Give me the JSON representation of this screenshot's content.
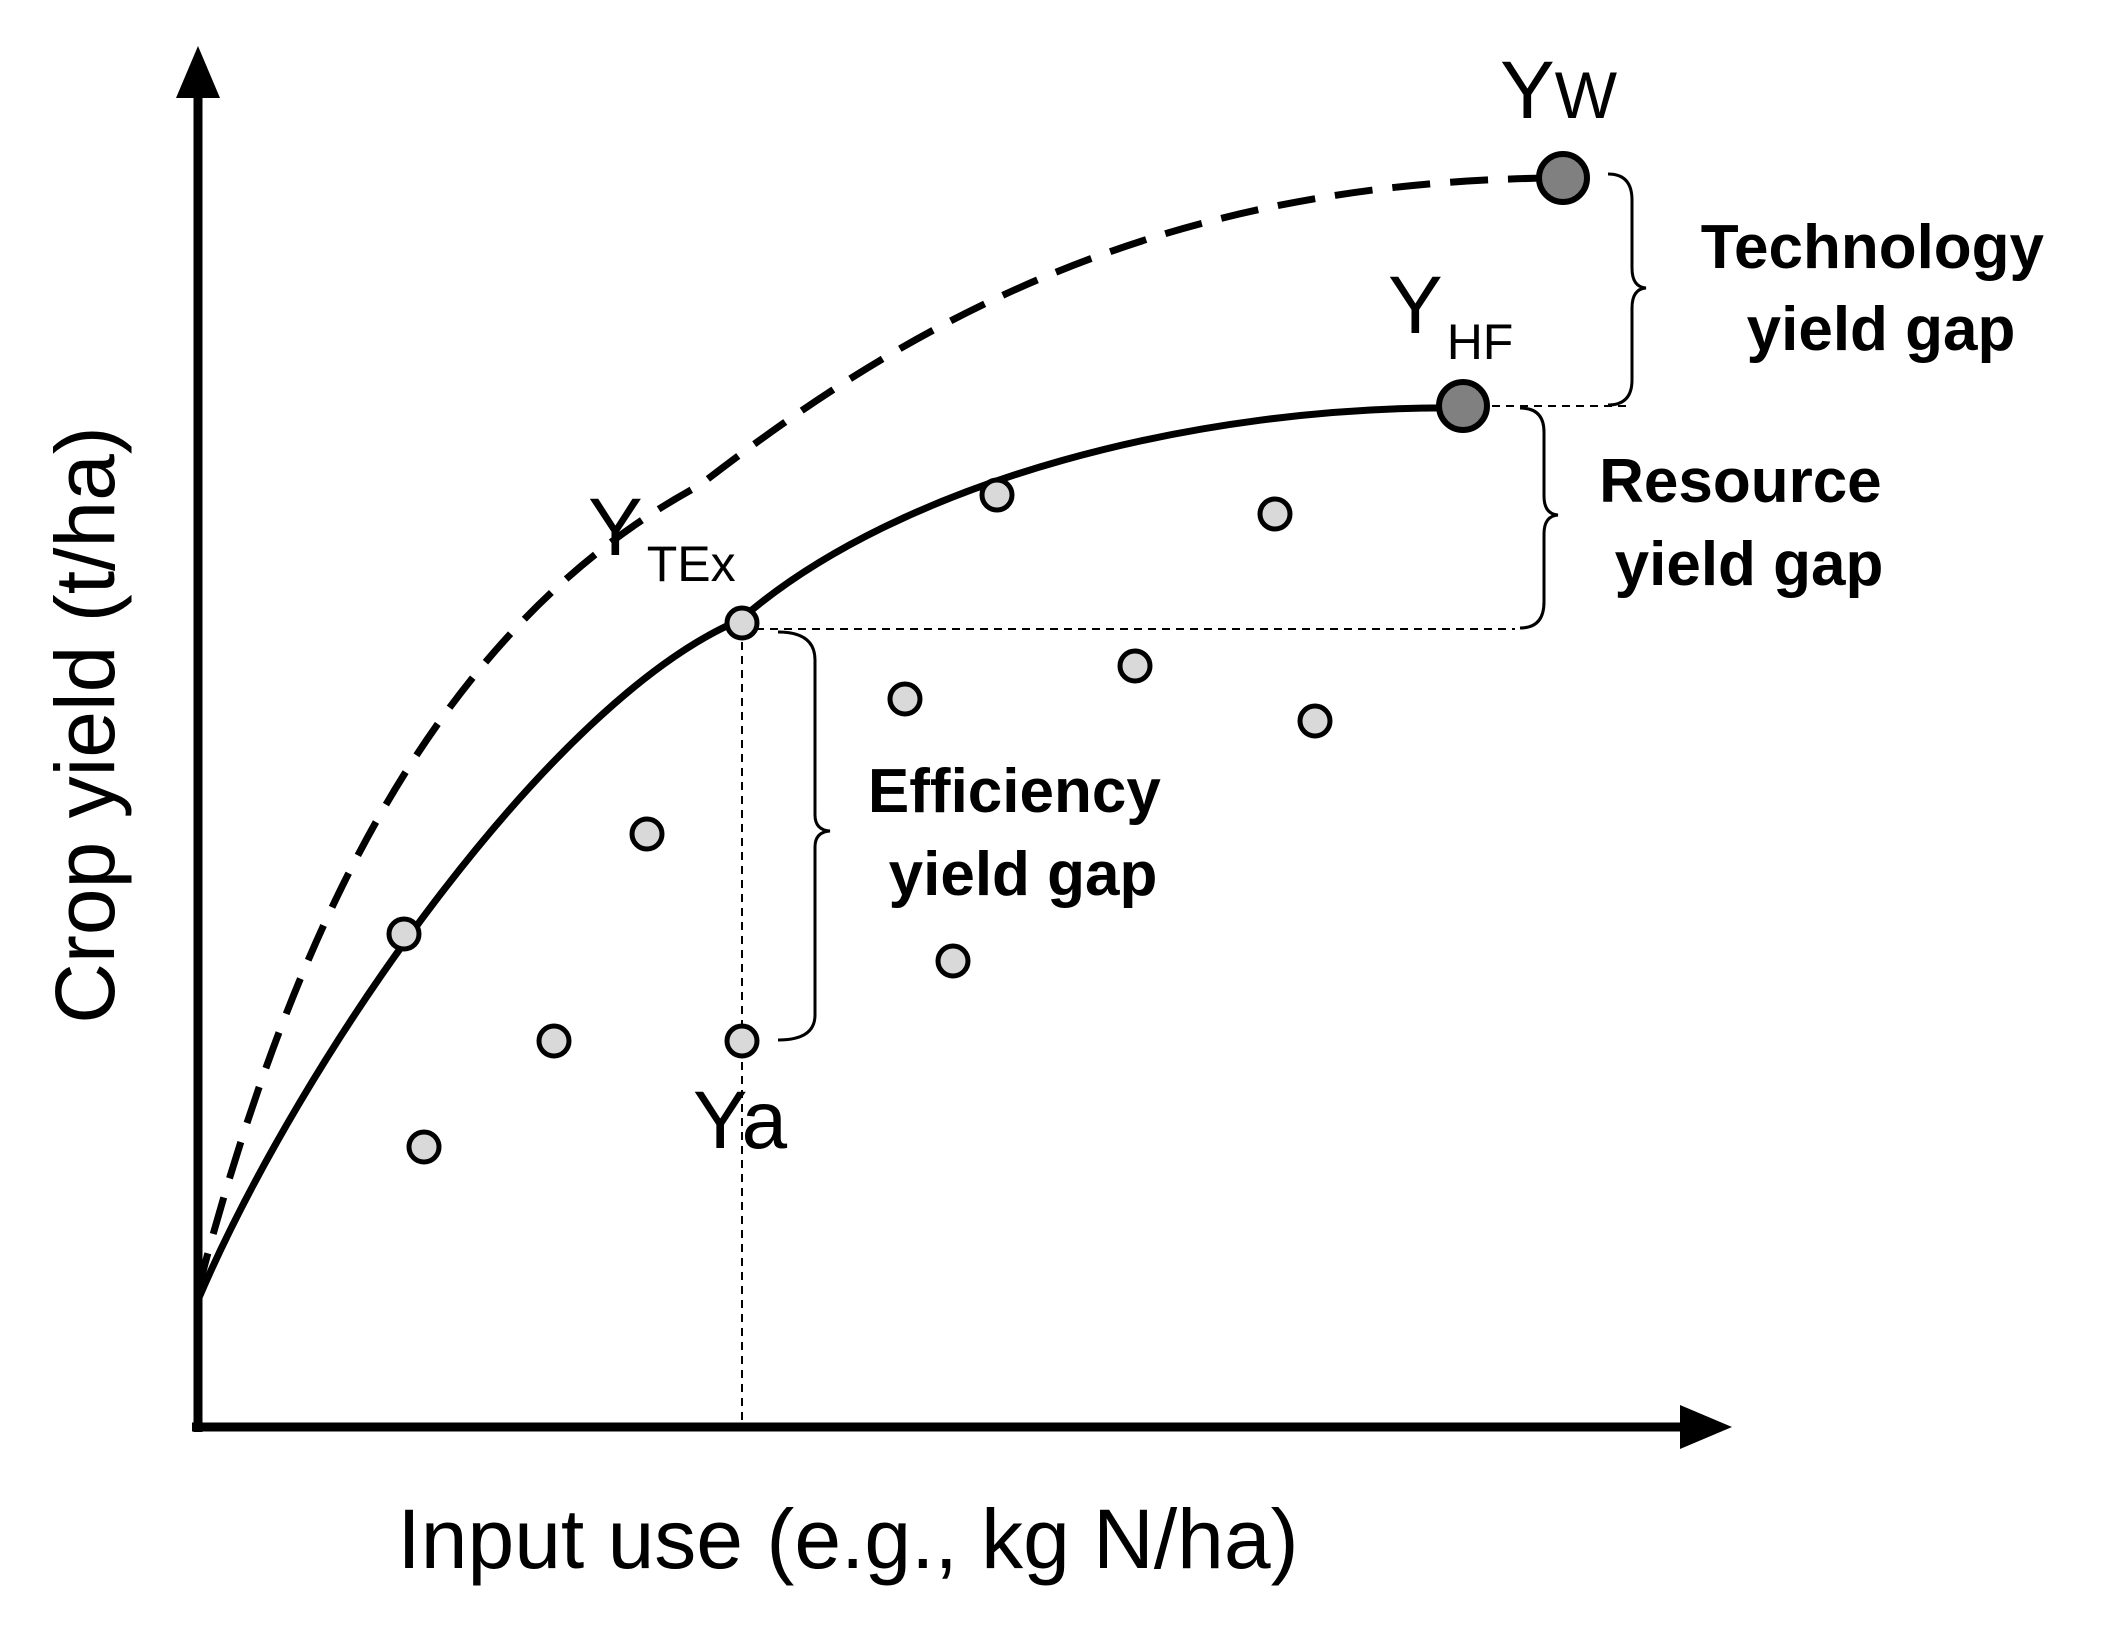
{
  "axes": {
    "x_title": "Input use (e.g., kg N/ha)",
    "y_title": "Crop yield (t/ha)"
  },
  "points": {
    "yw": {
      "main": "Y",
      "sub": "W"
    },
    "yhf": {
      "main": "Y",
      "sub": "HF"
    },
    "ytex": {
      "main": "Y",
      "sub": "TEx"
    },
    "ya": {
      "main": "Ya"
    }
  },
  "gaps": {
    "technology": [
      "Technology",
      "yield gap"
    ],
    "resource": [
      "Resource",
      "yield gap"
    ],
    "efficiency": [
      "Efficiency",
      "yield gap"
    ]
  },
  "colors": {
    "line": "#000000",
    "observed_point_fill": "#d9d9d9",
    "potential_point_fill": "#808080",
    "background": "#ffffff"
  }
}
